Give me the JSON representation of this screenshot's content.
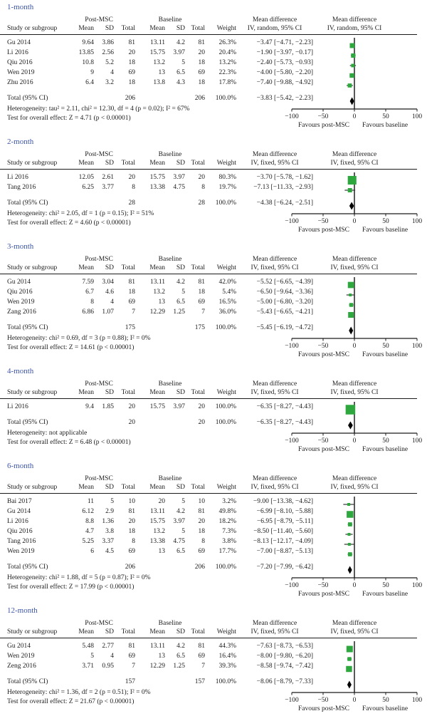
{
  "shared": {
    "columns": {
      "study": "Study or subgroup",
      "group_post": "Post-MSC",
      "group_base": "Baseline",
      "mean": "Mean",
      "sd": "SD",
      "total": "Total",
      "weight": "Weight"
    },
    "effect_label": "Mean difference",
    "favours_left": "Favours post-MSC",
    "favours_right": "Favours baseline",
    "axis": {
      "min": -100,
      "max": 100,
      "tick_values": [
        -100,
        -50,
        0,
        50,
        100
      ],
      "tick_labels": [
        "−100",
        "−50",
        "0",
        "50",
        "100"
      ]
    },
    "colors": {
      "marker_green": "#2EA83E",
      "title_blue": "#3E56A8",
      "diamond_black": "#000000",
      "zero_line_gray": "#595959"
    }
  },
  "chart_data": [
    {
      "type": "forest",
      "title": "1-month",
      "model_label": "IV, random, 95% CI",
      "xlim": [
        -100,
        100
      ],
      "studies": [
        {
          "study": "Gu 2014",
          "post_mean": "9.64",
          "post_sd": "3.86",
          "post_total": "81",
          "base_mean": "13.11",
          "base_sd": "4.2",
          "base_total": "81",
          "weight": "26.3%",
          "ci_text": "−3.47 [−4.71, −2.23]",
          "est": -3.47,
          "lo": -4.71,
          "hi": -2.23,
          "weight_pct": 26.3
        },
        {
          "study": "Li 2016",
          "post_mean": "13.85",
          "post_sd": "2.56",
          "post_total": "20",
          "base_mean": "15.75",
          "base_sd": "3.97",
          "base_total": "20",
          "weight": "20.4%",
          "ci_text": "−1.90 [−3.97, −0.17]",
          "est": -1.9,
          "lo": -3.97,
          "hi": -0.17,
          "weight_pct": 20.4
        },
        {
          "study": "Qiu 2016",
          "post_mean": "10.8",
          "post_sd": "5.2",
          "post_total": "18",
          "base_mean": "13.2",
          "base_sd": "5",
          "base_total": "18",
          "weight": "13.2%",
          "ci_text": "−2.40 [−5.73, −0.93]",
          "est": -2.4,
          "lo": -5.73,
          "hi": -0.93,
          "weight_pct": 13.2
        },
        {
          "study": "Wen 2019",
          "post_mean": "9",
          "post_sd": "4",
          "post_total": "69",
          "base_mean": "13",
          "base_sd": "6.5",
          "base_total": "69",
          "weight": "22.3%",
          "ci_text": "−4.00 [−5.80, −2.20]",
          "est": -4.0,
          "lo": -5.8,
          "hi": -2.2,
          "weight_pct": 22.3
        },
        {
          "study": "Zhu 2016",
          "post_mean": "6.4",
          "post_sd": "3.2",
          "post_total": "18",
          "base_mean": "13.8",
          "base_sd": "4.3",
          "base_total": "18",
          "weight": "17.8%",
          "ci_text": "−7.40 [−9.88, −4.92]",
          "est": -7.4,
          "lo": -9.88,
          "hi": -4.92,
          "weight_pct": 17.8
        }
      ],
      "total": {
        "label": "Total (95% CI)",
        "post_total": "206",
        "base_total": "206",
        "weight": "100.0%",
        "ci_text": "−3.83 [−5.42, −2.23]",
        "est": -3.83,
        "lo": -5.42,
        "hi": -2.23
      },
      "heterogeneity": "Heterogeneity: tau² = 2.11, chi² = 12.30, df = 4 (p = 0.02); I² = 67%",
      "overall_test": "Test for overall effect: Z = 4.71 (p < 0.00001)"
    },
    {
      "type": "forest",
      "title": "2-month",
      "model_label": "IV, fixed, 95% CI",
      "xlim": [
        -100,
        100
      ],
      "studies": [
        {
          "study": "Li 2016",
          "post_mean": "12.05",
          "post_sd": "2.61",
          "post_total": "20",
          "base_mean": "15.75",
          "base_sd": "3.97",
          "base_total": "20",
          "weight": "80.3%",
          "ci_text": "−3.70 [−5.78, −1.62]",
          "est": -3.7,
          "lo": -5.78,
          "hi": -1.62,
          "weight_pct": 80.3
        },
        {
          "study": "Tang 2016",
          "post_mean": "6.25",
          "post_sd": "3.77",
          "post_total": "8",
          "base_mean": "13.38",
          "base_sd": "4.75",
          "base_total": "8",
          "weight": "19.7%",
          "ci_text": "−7.13 [−11.33, −2.93]",
          "est": -7.13,
          "lo": -11.33,
          "hi": -2.93,
          "weight_pct": 19.7
        }
      ],
      "total": {
        "label": "Total (95% CI)",
        "post_total": "28",
        "base_total": "28",
        "weight": "100.0%",
        "ci_text": "−4.38 [−6.24, −2.51]",
        "est": -4.38,
        "lo": -6.24,
        "hi": -2.51
      },
      "heterogeneity": "Heterogeneity: chi² = 2.05, df = 1 (p = 0.15); I² = 51%",
      "overall_test": "Test for overall effect: Z = 4.60 (p < 0.00001)"
    },
    {
      "type": "forest",
      "title": "3-month",
      "model_label": "IV, fixed, 95% CI",
      "xlim": [
        -100,
        100
      ],
      "studies": [
        {
          "study": "Gu 2014",
          "post_mean": "7.59",
          "post_sd": "3.04",
          "post_total": "81",
          "base_mean": "13.11",
          "base_sd": "4.2",
          "base_total": "81",
          "weight": "42.0%",
          "ci_text": "−5.52 [−6.65, −4.39]",
          "est": -5.52,
          "lo": -6.65,
          "hi": -4.39,
          "weight_pct": 42.0
        },
        {
          "study": "Qiu 2016",
          "post_mean": "6.7",
          "post_sd": "4.6",
          "post_total": "18",
          "base_mean": "13.2",
          "base_sd": "5",
          "base_total": "18",
          "weight": "5.4%",
          "ci_text": "−6.50 [−9.64, −3.36]",
          "est": -6.5,
          "lo": -9.64,
          "hi": -3.36,
          "weight_pct": 5.4
        },
        {
          "study": "Wen 2019",
          "post_mean": "8",
          "post_sd": "4",
          "post_total": "69",
          "base_mean": "13",
          "base_sd": "6.5",
          "base_total": "69",
          "weight": "16.5%",
          "ci_text": "−5.00 [−6.80, −3.20]",
          "est": -5.0,
          "lo": -6.8,
          "hi": -3.2,
          "weight_pct": 16.5
        },
        {
          "study": "Zang 2016",
          "post_mean": "6.86",
          "post_sd": "1.07",
          "post_total": "7",
          "base_mean": "12.29",
          "base_sd": "1.25",
          "base_total": "7",
          "weight": "36.0%",
          "ci_text": "−5.43 [−6.65, −4.21]",
          "est": -5.43,
          "lo": -6.65,
          "hi": -4.21,
          "weight_pct": 36.0
        }
      ],
      "total": {
        "label": "Total (95% CI)",
        "post_total": "175",
        "base_total": "175",
        "weight": "100.0%",
        "ci_text": "−5.45 [−6.19, −4.72]",
        "est": -5.45,
        "lo": -6.19,
        "hi": -4.72
      },
      "heterogeneity": "Heterogeneity: chi² = 0.69, df = 3 (p = 0.88); I² = 0%",
      "overall_test": "Test for overall effect: Z = 14.61 (p < 0.00001)"
    },
    {
      "type": "forest",
      "title": "4-month",
      "model_label": "IV, fixed, 95% CI",
      "xlim": [
        -100,
        100
      ],
      "studies": [
        {
          "study": "Li 2016",
          "post_mean": "9.4",
          "post_sd": "1.85",
          "post_total": "20",
          "base_mean": "15.75",
          "base_sd": "3.97",
          "base_total": "20",
          "weight": "100.0%",
          "ci_text": "−6.35 [−8.27, −4.43]",
          "est": -6.35,
          "lo": -8.27,
          "hi": -4.43,
          "weight_pct": 100.0
        }
      ],
      "total": {
        "label": "Total (95% CI)",
        "post_total": "20",
        "base_total": "20",
        "weight": "100.0%",
        "ci_text": "−6.35 [−8.27, −4.43]",
        "est": -6.35,
        "lo": -8.27,
        "hi": -4.43
      },
      "heterogeneity": "Heterogeneity: not applicable",
      "overall_test": "Test for overall effect: Z = 6.48 (p < 0.00001)"
    },
    {
      "type": "forest",
      "title": "6-month",
      "model_label": "IV, fixed, 95% CI",
      "xlim": [
        -100,
        100
      ],
      "studies": [
        {
          "study": "Bai 2017",
          "post_mean": "11",
          "post_sd": "5",
          "post_total": "10",
          "base_mean": "20",
          "base_sd": "5",
          "base_total": "10",
          "weight": "3.2%",
          "ci_text": "−9.00 [−13.38, −4.62]",
          "est": -9.0,
          "lo": -13.38,
          "hi": -4.62,
          "weight_pct": 3.2
        },
        {
          "study": "Gu 2014",
          "post_mean": "6.12",
          "post_sd": "2.9",
          "post_total": "81",
          "base_mean": "13.11",
          "base_sd": "4.2",
          "base_total": "81",
          "weight": "49.8%",
          "ci_text": "−6.99 [−8.10, −5.88]",
          "est": -6.99,
          "lo": -8.1,
          "hi": -5.88,
          "weight_pct": 49.8
        },
        {
          "study": "Li 2016",
          "post_mean": "8.8",
          "post_sd": "1.36",
          "post_total": "20",
          "base_mean": "15.75",
          "base_sd": "3.97",
          "base_total": "20",
          "weight": "18.2%",
          "ci_text": "−6.95 [−8.79, −5.11]",
          "est": -6.95,
          "lo": -8.79,
          "hi": -5.11,
          "weight_pct": 18.2
        },
        {
          "study": "Qiu 2016",
          "post_mean": "4.7",
          "post_sd": "3.8",
          "post_total": "18",
          "base_mean": "13.2",
          "base_sd": "5",
          "base_total": "18",
          "weight": "7.3%",
          "ci_text": "−8.50 [−11.40, −5.60]",
          "est": -8.5,
          "lo": -11.4,
          "hi": -5.6,
          "weight_pct": 7.3
        },
        {
          "study": "Tang 2016",
          "post_mean": "5.25",
          "post_sd": "3.37",
          "post_total": "8",
          "base_mean": "13.38",
          "base_sd": "4.75",
          "base_total": "8",
          "weight": "3.8%",
          "ci_text": "−8.13 [−12.17, −4.09]",
          "est": -8.13,
          "lo": -12.17,
          "hi": -4.09,
          "weight_pct": 3.8
        },
        {
          "study": "Wen 2019",
          "post_mean": "6",
          "post_sd": "4.5",
          "post_total": "69",
          "base_mean": "13",
          "base_sd": "6.5",
          "base_total": "69",
          "weight": "17.7%",
          "ci_text": "−7.00 [−8.87, −5.13]",
          "est": -7.0,
          "lo": -8.87,
          "hi": -5.13,
          "weight_pct": 17.7
        }
      ],
      "total": {
        "label": "Total (95% CI)",
        "post_total": "206",
        "base_total": "206",
        "weight": "100.0%",
        "ci_text": "−7.20 [−7.99, −6.42]",
        "est": -7.2,
        "lo": -7.99,
        "hi": -6.42
      },
      "heterogeneity": "Heterogeneity: chi² = 1.88, df = 5 (p = 0.87); I² = 0%",
      "overall_test": "Test for overall effect: Z = 17.99 (p < 0.00001)"
    },
    {
      "type": "forest",
      "title": "12-month",
      "model_label": "IV, fixed, 95% CI",
      "xlim": [
        -100,
        100
      ],
      "studies": [
        {
          "study": "Gu 2014",
          "post_mean": "5.48",
          "post_sd": "2.77",
          "post_total": "81",
          "base_mean": "13.11",
          "base_sd": "4.2",
          "base_total": "81",
          "weight": "44.3%",
          "ci_text": "−7.63 [−8.73, −6.53]",
          "est": -7.63,
          "lo": -8.73,
          "hi": -6.53,
          "weight_pct": 44.3
        },
        {
          "study": "Wen 2019",
          "post_mean": "5",
          "post_sd": "4",
          "post_total": "69",
          "base_mean": "13",
          "base_sd": "6.5",
          "base_total": "69",
          "weight": "16.4%",
          "ci_text": "−8.00 [−9.80, −6.20]",
          "est": -8.0,
          "lo": -9.8,
          "hi": -6.2,
          "weight_pct": 16.4
        },
        {
          "study": "Zeng 2016",
          "post_mean": "3.71",
          "post_sd": "0.95",
          "post_total": "7",
          "base_mean": "12.29",
          "base_sd": "1.25",
          "base_total": "7",
          "weight": "39.3%",
          "ci_text": "−8.58 [−9.74, −7.42]",
          "est": -8.58,
          "lo": -9.74,
          "hi": -7.42,
          "weight_pct": 39.3
        }
      ],
      "total": {
        "label": "Total (95% CI)",
        "post_total": "157",
        "base_total": "157",
        "weight": "100.0%",
        "ci_text": "−8.06 [−8.79, −7.33]",
        "est": -8.06,
        "lo": -8.79,
        "hi": -7.33
      },
      "heterogeneity": "Heterogeneity: chi² = 1.36, df = 2 (p = 0.51); I² = 0%",
      "overall_test": "Test for overall effect: Z = 21.67 (p < 0.00001)"
    }
  ]
}
